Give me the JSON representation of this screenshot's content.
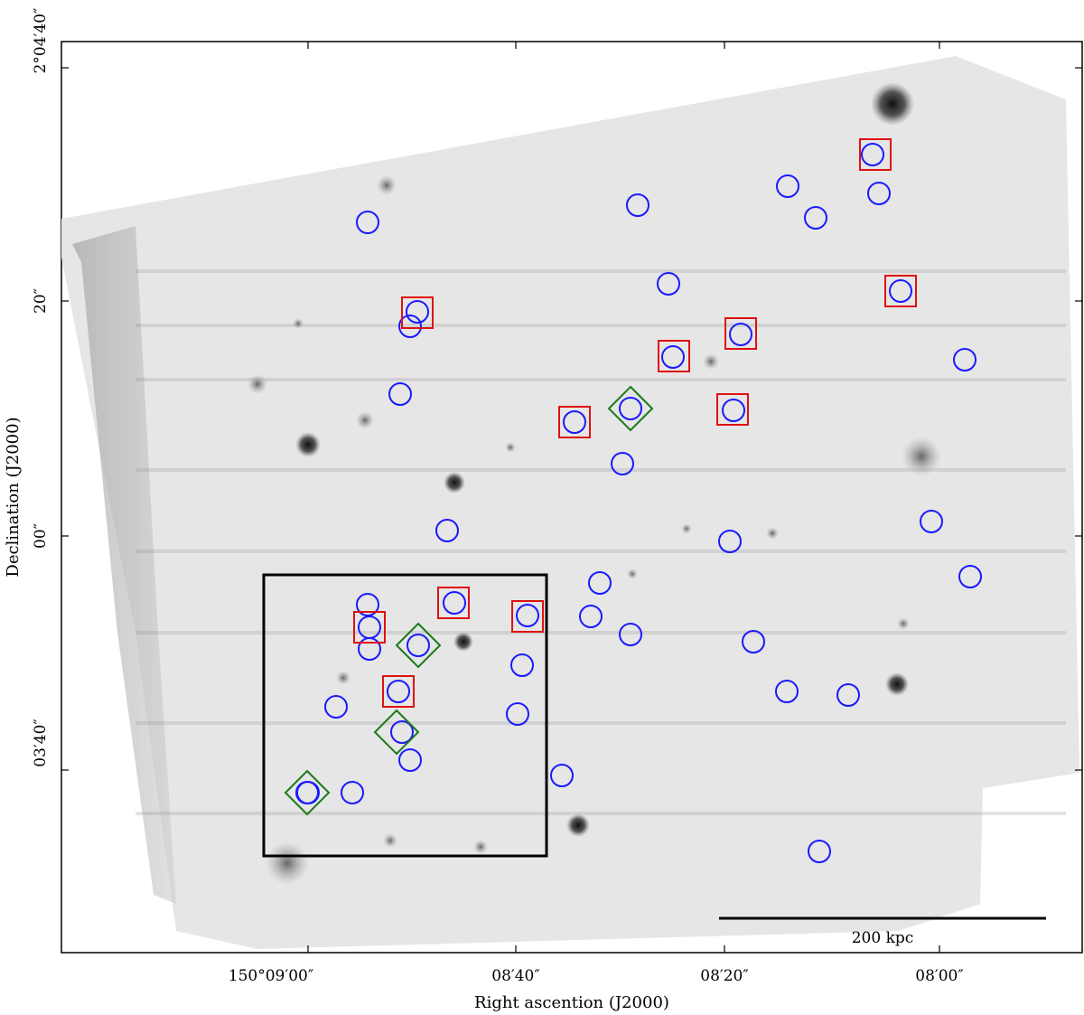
{
  "figure": {
    "x_axis_label": "Right ascention (J2000)",
    "y_axis_label": "Declination (J2000)",
    "x_ticks": [
      "150°09′00″",
      "08′40″",
      "08′20″",
      "08′00″"
    ],
    "y_ticks": [
      "2°04′40″",
      "20″",
      "00″",
      "03′40″"
    ],
    "scale_bar_label": "200 kpc",
    "colors": {
      "circle_marker": "#1a1aff",
      "square_marker": "#e01010",
      "diamond_marker": "#1a7a1a",
      "inset_box": "#000000",
      "background_field": "#eaeaea"
    },
    "marker_counts": {
      "blue_circles": 45,
      "red_squares": 12,
      "green_diamonds": 4
    },
    "image_type": "greyscale astronomical field (inverted), RA/Dec axes"
  }
}
